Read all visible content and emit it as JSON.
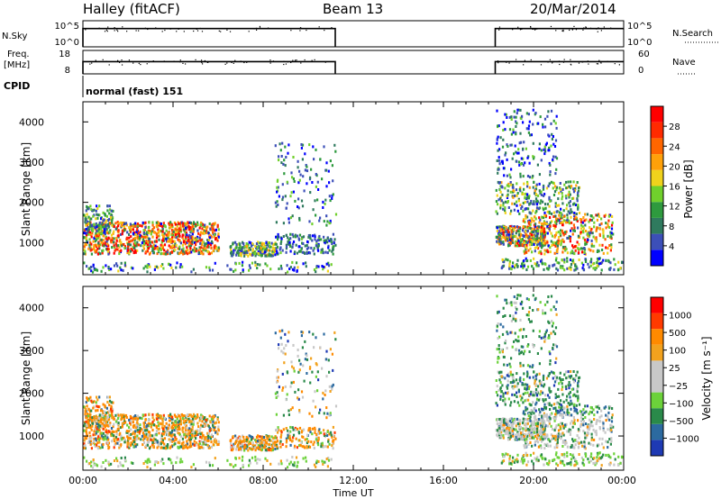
{
  "header": {
    "site": "Halley (fitACF)",
    "beam": "Beam 13",
    "date": "20/Mar/2014"
  },
  "top_panels": {
    "nsky": {
      "label": "N.Sky",
      "ticks": [
        "10^5",
        "10^0"
      ]
    },
    "nsearch": {
      "label": "N.Search",
      "ticks": [
        "10^5",
        "10^0"
      ]
    },
    "freq": {
      "label_line1": "Freq.",
      "label_line2": "[MHz]",
      "ticks": [
        "18",
        "8"
      ]
    },
    "nave": {
      "label": "Nave",
      "ticks": [
        "60",
        "0"
      ]
    },
    "cpid": {
      "label": "CPID",
      "text": "normal (fast) 151"
    }
  },
  "chart_data": [
    {
      "type": "heatmap",
      "name": "power",
      "ylabel": "Slant Range [km]",
      "xlabel": "Time UT",
      "yticks": [
        "1000",
        "2000",
        "3000",
        "4000"
      ],
      "xticks": [
        "00:00",
        "04:00",
        "08:00",
        "12:00",
        "16:00",
        "20:00",
        "00:00"
      ],
      "colorbar": {
        "label": "Power [dB]",
        "ticks": [
          "4",
          "8",
          "12",
          "16",
          "20",
          "24",
          "28"
        ],
        "colors": [
          "#0000ff",
          "#3c4fb8",
          "#2f7a5e",
          "#2e9a3e",
          "#70d02c",
          "#f0d21c",
          "#ffa10a",
          "#ff6600",
          "#ff2a00",
          "#ff0000"
        ]
      },
      "data_windows_ut_hours": [
        [
          0.0,
          11.2
        ],
        [
          18.3,
          24.0
        ]
      ]
    },
    {
      "type": "heatmap",
      "name": "velocity",
      "ylabel": "Slant Range [km]",
      "xlabel": "Time UT",
      "yticks": [
        "1000",
        "2000",
        "3000",
        "4000"
      ],
      "xticks": [
        "00:00",
        "04:00",
        "08:00",
        "12:00",
        "16:00",
        "20:00",
        "00:00"
      ],
      "colorbar": {
        "label": "Velocity [m s⁻¹]",
        "ticks": [
          "1000",
          "500",
          "100",
          "25",
          "−25",
          "−100",
          "−500",
          "−1000"
        ],
        "colors": [
          "#1e3ab4",
          "#2c6aa0",
          "#2a8a4a",
          "#6cd23a",
          "#c8c8c8",
          "#c8c8c8",
          "#f2a21e",
          "#ff8a00",
          "#ff3a00",
          "#ff0000"
        ]
      },
      "data_windows_ut_hours": [
        [
          0.0,
          11.2
        ],
        [
          18.3,
          24.0
        ]
      ]
    }
  ],
  "x_axis_label": "Time UT"
}
